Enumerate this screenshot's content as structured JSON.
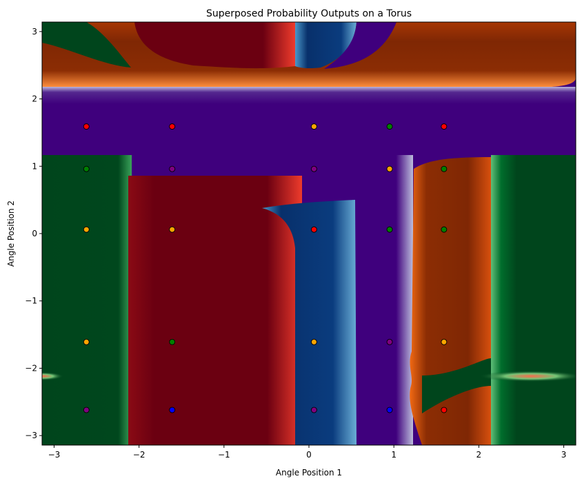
{
  "chart_data": {
    "type": "heatmap",
    "title": "Superposed Probability Outputs on a Torus",
    "xlabel": "Angle Position 1",
    "ylabel": "Angle Position 2",
    "xlim": [
      -3.14159,
      3.14159
    ],
    "ylim": [
      -3.14159,
      3.14159
    ],
    "xticks": [
      -3,
      -2,
      -1,
      0,
      1,
      2,
      3
    ],
    "yticks": [
      -3,
      -2,
      -1,
      0,
      1,
      2,
      3
    ],
    "xtick_labels": [
      "−3",
      "−2",
      "−1",
      "0",
      "1",
      "2",
      "3"
    ],
    "ytick_labels": [
      "−3",
      "−2",
      "−1",
      "0",
      "1",
      "2",
      "3"
    ],
    "grid": false,
    "region_colors": {
      "green": "#00451c",
      "red": "#6b0011",
      "blue": "#08306b",
      "purple": "#3f007d",
      "orange": "#7f2704"
    },
    "point_colors": {
      "red": "#ff0000",
      "orange": "#ffa500",
      "green": "#008000",
      "purple": "#800080",
      "blue": "#0000ff"
    },
    "points": [
      {
        "x": -2.62,
        "y": 1.59,
        "color": "red"
      },
      {
        "x": -1.61,
        "y": 1.59,
        "color": "red"
      },
      {
        "x": 0.06,
        "y": 1.59,
        "color": "orange"
      },
      {
        "x": 0.95,
        "y": 1.59,
        "color": "green"
      },
      {
        "x": 1.59,
        "y": 1.59,
        "color": "red"
      },
      {
        "x": -2.62,
        "y": 0.96,
        "color": "green"
      },
      {
        "x": -1.61,
        "y": 0.96,
        "color": "purple"
      },
      {
        "x": 0.06,
        "y": 0.96,
        "color": "purple"
      },
      {
        "x": 0.95,
        "y": 0.96,
        "color": "orange"
      },
      {
        "x": 1.59,
        "y": 0.96,
        "color": "green"
      },
      {
        "x": -2.62,
        "y": 0.06,
        "color": "orange"
      },
      {
        "x": -1.61,
        "y": 0.06,
        "color": "orange"
      },
      {
        "x": 0.06,
        "y": 0.06,
        "color": "red"
      },
      {
        "x": 0.95,
        "y": 0.06,
        "color": "green"
      },
      {
        "x": 1.59,
        "y": 0.06,
        "color": "green"
      },
      {
        "x": -2.62,
        "y": -1.61,
        "color": "orange"
      },
      {
        "x": -1.61,
        "y": -1.61,
        "color": "green"
      },
      {
        "x": 0.06,
        "y": -1.61,
        "color": "orange"
      },
      {
        "x": 0.95,
        "y": -1.61,
        "color": "purple"
      },
      {
        "x": 1.59,
        "y": -1.61,
        "color": "orange"
      },
      {
        "x": -2.62,
        "y": -2.62,
        "color": "purple"
      },
      {
        "x": -1.61,
        "y": -2.62,
        "color": "blue"
      },
      {
        "x": 0.06,
        "y": -2.62,
        "color": "purple"
      },
      {
        "x": 0.95,
        "y": -2.62,
        "color": "blue"
      },
      {
        "x": 1.59,
        "y": -2.62,
        "color": "red"
      }
    ]
  }
}
